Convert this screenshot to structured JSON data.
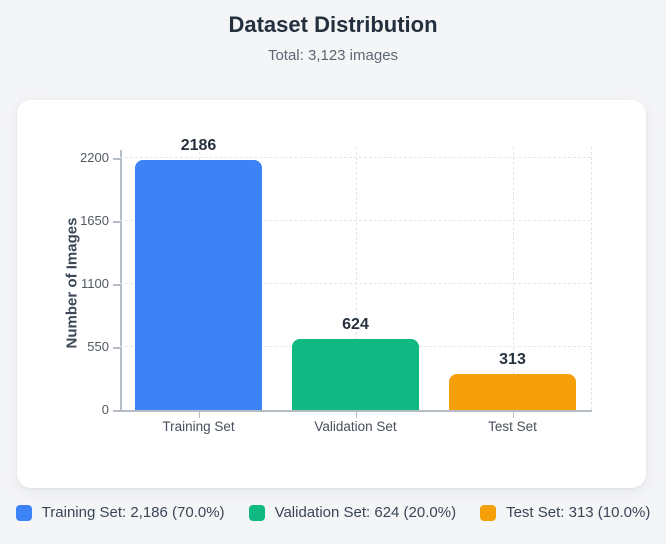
{
  "header": {
    "title": "Dataset Distribution",
    "subtitle": "Total: 3,123 images"
  },
  "chart_data": {
    "type": "bar",
    "title": "Dataset Distribution",
    "subtitle": "Total: 3,123 images",
    "categories": [
      "Training Set",
      "Validation Set",
      "Test Set"
    ],
    "values": [
      2186,
      624,
      313
    ],
    "value_labels": [
      "2186",
      "624",
      "313"
    ],
    "bar_colors": [
      "#3e82f7",
      "#10b981",
      "#f5a00b"
    ],
    "xlabel": "",
    "ylabel": "Number of Images",
    "yticks": [
      0,
      550,
      1100,
      1650,
      2200
    ],
    "ylim": [
      0,
      2300
    ],
    "grid": "dashed",
    "legend_position": "bottom"
  },
  "legend": {
    "items": [
      {
        "label": "Training Set: 2,186 (70.0%)",
        "color": "#3e82f7"
      },
      {
        "label": "Validation Set: 624 (20.0%)",
        "color": "#10b981"
      },
      {
        "label": "Test Set: 313 (10.0%)",
        "color": "#f5a00b"
      }
    ]
  },
  "colors": {
    "page_background": "#f4f5f7",
    "card_background": "#ffffff",
    "title_text": "#24303e",
    "subtitle_text": "#5d6773",
    "axis_line": "#b6bcc3",
    "gridline": "#e3e6ea",
    "value_label_text": "#28323e"
  }
}
